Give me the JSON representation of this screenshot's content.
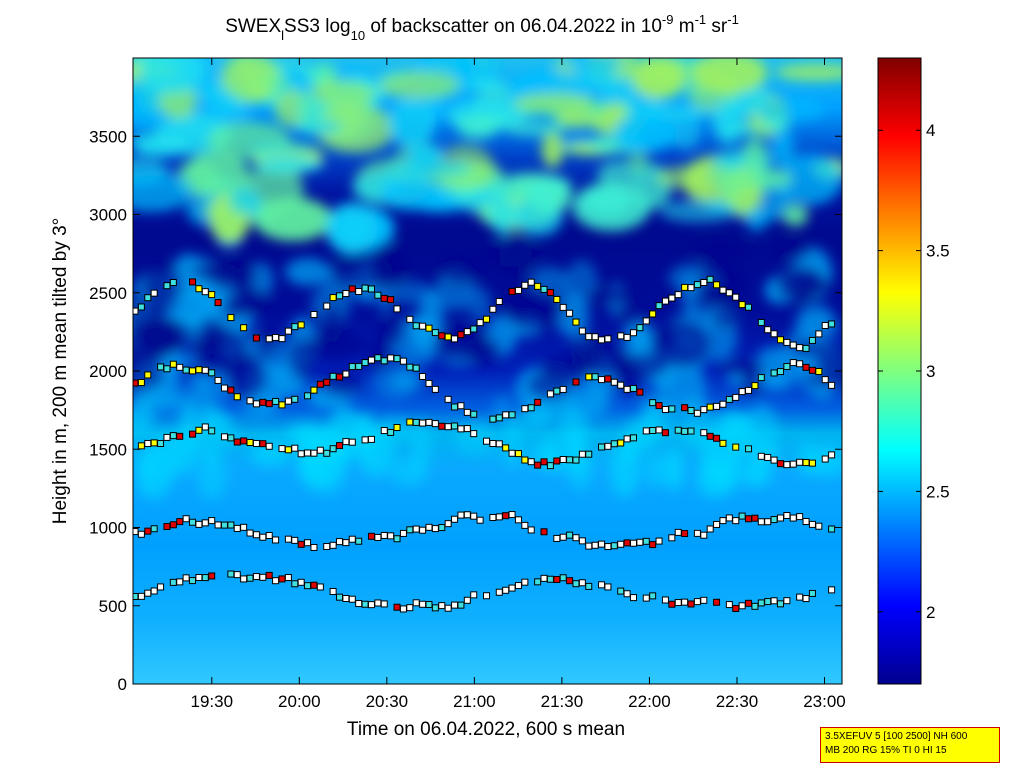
{
  "chart_data": {
    "type": "heatmap",
    "title": {
      "prefix": "SWEX",
      "sub_l": "l",
      "mid1": "SS3 log",
      "sub_10": "10",
      "mid2": " of backscatter on 06.04.2022 in 10",
      "sup_m9": "-9",
      "mid3": " m",
      "sup_m1": "-1",
      "mid4": " sr",
      "sup_m1b": "-1"
    },
    "xlabel": "Time on 06.04.2022, 600 s mean",
    "ylabel": "Height in m, 200 m mean tilted by 3°",
    "xlim": [
      "19:03",
      "23:06"
    ],
    "ylim": [
      0,
      4000
    ],
    "x_ticks": [
      "19:30",
      "20:00",
      "20:30",
      "21:00",
      "21:30",
      "22:00",
      "22:30",
      "23:00"
    ],
    "y_ticks": [
      "0",
      "500",
      "1000",
      "1500",
      "2000",
      "2500",
      "3000",
      "3500"
    ],
    "colorbar": {
      "colormap": "jet",
      "range": [
        1.7,
        4.3
      ],
      "ticks": [
        "2",
        "2.5",
        "3",
        "3.5",
        "4"
      ]
    },
    "layers_description_levels": [
      {
        "name": "layer-near-570",
        "height_m": 570
      },
      {
        "name": "layer-near-950",
        "height_m": 950
      },
      {
        "name": "layer-near-1500",
        "height_m": 1500
      },
      {
        "name": "layer-near-1900",
        "height_m": 1900
      },
      {
        "name": "layer-near-2400",
        "height_m": 2400
      }
    ],
    "background_structure": {
      "dark_band_m": [
        1700,
        2900
      ],
      "bright_band_m": [
        3000,
        4000
      ]
    },
    "colors": {
      "jet_dark": "#00008f",
      "jet_blue": "#0000ff",
      "jet_cyan": "#00ffff",
      "jet_yellow": "#ffff00",
      "jet_red": "#ff0000",
      "jet_darkred": "#800000"
    }
  },
  "info_box": {
    "line1": "3.5XEFUV 5 [100 2500] NH 600",
    "line2": "MB 200 RG 15% TI 0 HI 15"
  }
}
